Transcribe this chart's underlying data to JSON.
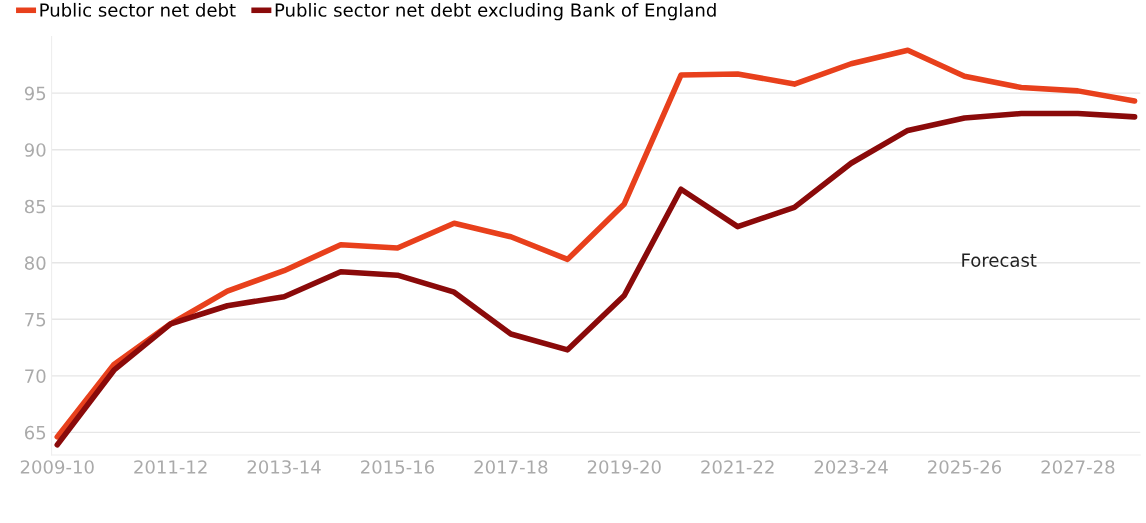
{
  "chart_data": {
    "type": "line",
    "categories": [
      "2009-10",
      null,
      "2011-12",
      null,
      "2013-14",
      null,
      "2015-16",
      null,
      "2017-18",
      null,
      "2019-20",
      null,
      "2021-22",
      null,
      "2023-24",
      null,
      "2025-26",
      null,
      "2027-28",
      null
    ],
    "series": [
      {
        "name": "Public sector net debt",
        "color": "#e8401c",
        "values": [
          64.6,
          71.0,
          74.6,
          77.5,
          79.3,
          81.6,
          81.3,
          83.5,
          82.3,
          80.3,
          85.2,
          96.6,
          96.7,
          95.8,
          97.6,
          98.8,
          96.5,
          95.5,
          95.2,
          94.3
        ]
      },
      {
        "name": "Public sector net debt excluding Bank of England",
        "color": "#8a0a0a",
        "values": [
          63.9,
          70.5,
          74.6,
          76.2,
          77.0,
          79.2,
          78.9,
          77.4,
          73.7,
          72.3,
          77.1,
          86.5,
          83.2,
          84.9,
          88.8,
          91.7,
          92.8,
          93.2,
          93.2,
          92.9
        ]
      }
    ],
    "ylim": [
      63,
      100
    ],
    "yticks": [
      65,
      70,
      75,
      80,
      85,
      90,
      95
    ],
    "grid": "y",
    "legend": "top left",
    "marker": "none",
    "line_style": "solid",
    "annotations": [
      "Forecast"
    ]
  }
}
